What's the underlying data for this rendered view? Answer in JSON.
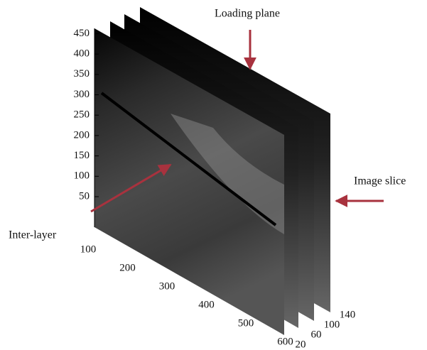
{
  "figure": {
    "annotations": {
      "loading_plane": "Loading plane",
      "image_slice": "Image slice",
      "inter_layer": "Inter-layer"
    },
    "height_ticks": [
      "50",
      "100",
      "150",
      "200",
      "250",
      "300",
      "350",
      "400",
      "450"
    ],
    "depth_ticks": [
      "100",
      "200",
      "300",
      "400",
      "500",
      "600"
    ],
    "slice_ticks": [
      "20",
      "60",
      "100",
      "140"
    ]
  }
}
